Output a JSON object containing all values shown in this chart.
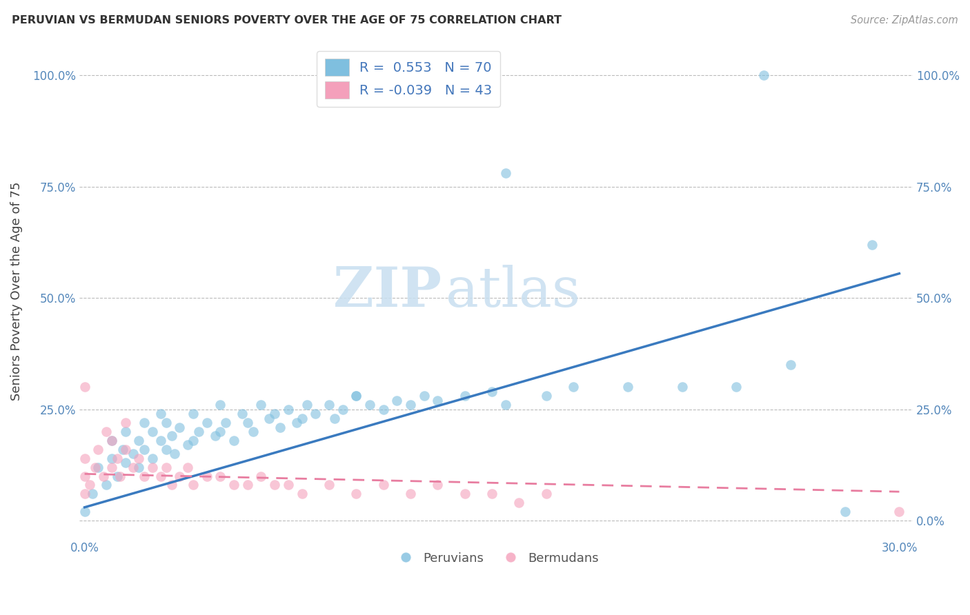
{
  "title": "PERUVIAN VS BERMUDAN SENIORS POVERTY OVER THE AGE OF 75 CORRELATION CHART",
  "source": "Source: ZipAtlas.com",
  "ylabel": "Seniors Poverty Over the Age of 75",
  "xlim": [
    -0.002,
    0.305
  ],
  "ylim": [
    -0.04,
    1.07
  ],
  "xticks": [
    0.0,
    0.05,
    0.1,
    0.15,
    0.2,
    0.25,
    0.3
  ],
  "yticks": [
    0.0,
    0.25,
    0.5,
    0.75,
    1.0
  ],
  "right_ytick_labels": [
    "0.0%",
    "25.0%",
    "50.0%",
    "75.0%",
    "100.0%"
  ],
  "left_ytick_labels": [
    "",
    "25.0%",
    "50.0%",
    "75.0%",
    "100.0%"
  ],
  "xtick_labels": [
    "0.0%",
    "",
    "",
    "",
    "",
    "",
    "30.0%"
  ],
  "blue_color": "#7fbfdf",
  "pink_color": "#f4a0bb",
  "blue_line_color": "#3a7abf",
  "pink_line_color": "#e87da0",
  "watermark_zip": "ZIP",
  "watermark_atlas": "atlas",
  "legend_label_1": "R =  0.553   N = 70",
  "legend_label_2": "R = -0.039   N = 43",
  "bottom_legend_1": "Peruvians",
  "bottom_legend_2": "Bermudans",
  "blue_line_x0": 0.0,
  "blue_line_y0": 0.03,
  "blue_line_x1": 0.3,
  "blue_line_y1": 0.555,
  "pink_line_x0": 0.0,
  "pink_line_y0": 0.105,
  "pink_line_x1": 0.3,
  "pink_line_y1": 0.065,
  "blue_pts_x": [
    0.0,
    0.003,
    0.005,
    0.008,
    0.01,
    0.01,
    0.012,
    0.014,
    0.015,
    0.015,
    0.018,
    0.02,
    0.02,
    0.022,
    0.022,
    0.025,
    0.025,
    0.028,
    0.028,
    0.03,
    0.03,
    0.032,
    0.033,
    0.035,
    0.038,
    0.04,
    0.04,
    0.042,
    0.045,
    0.048,
    0.05,
    0.05,
    0.052,
    0.055,
    0.058,
    0.06,
    0.062,
    0.065,
    0.068,
    0.07,
    0.072,
    0.075,
    0.078,
    0.08,
    0.082,
    0.085,
    0.09,
    0.092,
    0.095,
    0.1,
    0.105,
    0.11,
    0.115,
    0.12,
    0.125,
    0.13,
    0.14,
    0.15,
    0.155,
    0.17,
    0.18,
    0.2,
    0.22,
    0.24,
    0.26,
    0.155,
    0.29,
    0.28,
    0.1,
    0.25
  ],
  "blue_pts_y": [
    0.02,
    0.06,
    0.12,
    0.08,
    0.14,
    0.18,
    0.1,
    0.16,
    0.13,
    0.2,
    0.15,
    0.12,
    0.18,
    0.16,
    0.22,
    0.14,
    0.2,
    0.18,
    0.24,
    0.16,
    0.22,
    0.19,
    0.15,
    0.21,
    0.17,
    0.18,
    0.24,
    0.2,
    0.22,
    0.19,
    0.2,
    0.26,
    0.22,
    0.18,
    0.24,
    0.22,
    0.2,
    0.26,
    0.23,
    0.24,
    0.21,
    0.25,
    0.22,
    0.23,
    0.26,
    0.24,
    0.26,
    0.23,
    0.25,
    0.28,
    0.26,
    0.25,
    0.27,
    0.26,
    0.28,
    0.27,
    0.28,
    0.29,
    0.26,
    0.28,
    0.3,
    0.3,
    0.3,
    0.3,
    0.35,
    0.78,
    0.62,
    0.02,
    0.28,
    1.0
  ],
  "pink_pts_x": [
    0.0,
    0.0,
    0.0,
    0.002,
    0.004,
    0.005,
    0.007,
    0.008,
    0.01,
    0.01,
    0.012,
    0.013,
    0.015,
    0.015,
    0.018,
    0.02,
    0.022,
    0.025,
    0.028,
    0.03,
    0.032,
    0.035,
    0.038,
    0.04,
    0.045,
    0.05,
    0.055,
    0.06,
    0.065,
    0.07,
    0.075,
    0.08,
    0.09,
    0.1,
    0.11,
    0.12,
    0.13,
    0.14,
    0.15,
    0.16,
    0.17,
    0.0,
    0.3
  ],
  "pink_pts_y": [
    0.06,
    0.1,
    0.14,
    0.08,
    0.12,
    0.16,
    0.1,
    0.2,
    0.12,
    0.18,
    0.14,
    0.1,
    0.16,
    0.22,
    0.12,
    0.14,
    0.1,
    0.12,
    0.1,
    0.12,
    0.08,
    0.1,
    0.12,
    0.08,
    0.1,
    0.1,
    0.08,
    0.08,
    0.1,
    0.08,
    0.08,
    0.06,
    0.08,
    0.06,
    0.08,
    0.06,
    0.08,
    0.06,
    0.06,
    0.04,
    0.06,
    0.3,
    0.02
  ]
}
